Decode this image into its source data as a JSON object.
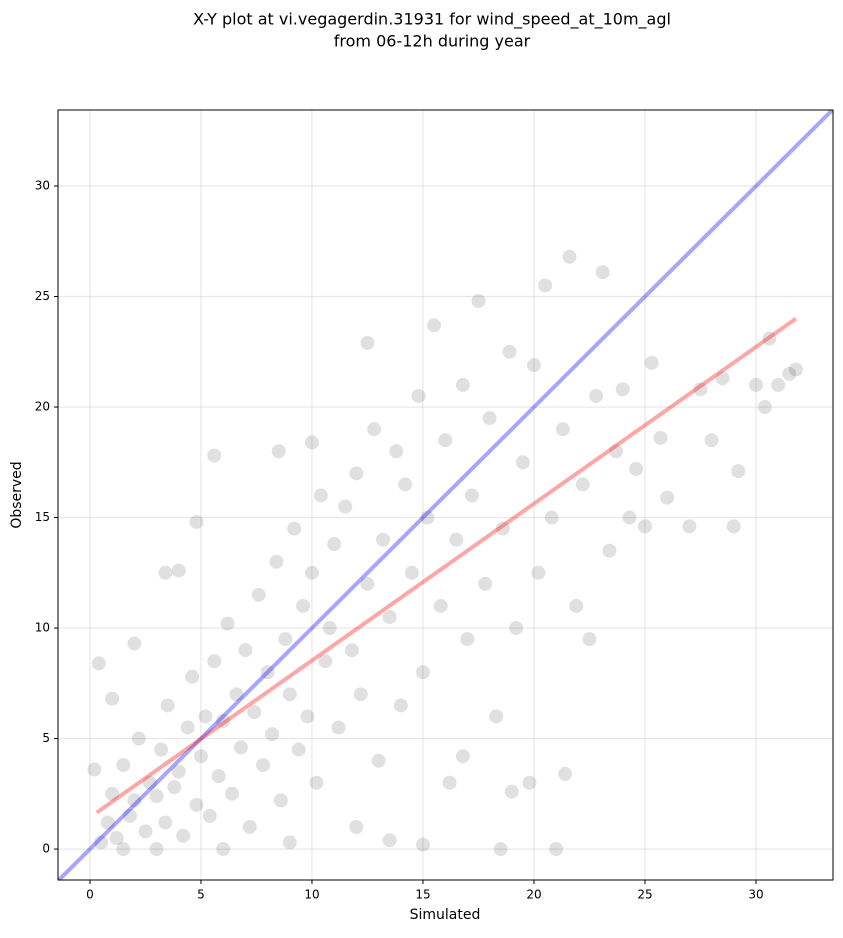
{
  "chart_data": {
    "type": "scatter",
    "title": [
      "X-Y plot at vi.vegagerdin.31931 for wind_speed_at_10m_agl",
      "from 06-12h during year"
    ],
    "x_label": "Simulated",
    "y_label": "Observed",
    "xlim": [
      -1.44,
      33.47
    ],
    "ylim": [
      -1.4,
      33.44
    ],
    "xticks": [
      0,
      5,
      10,
      15,
      20,
      25,
      30
    ],
    "yticks": [
      0,
      5,
      10,
      15,
      20,
      25,
      30
    ],
    "grid": true,
    "color": "#000000",
    "x": [
      0.5,
      0.8,
      1.0,
      1.2,
      1.5,
      1.8,
      2.0,
      2.2,
      2.5,
      2.7,
      3.0,
      3.2,
      3.4,
      3.5,
      3.8,
      4.0,
      4.2,
      4.4,
      4.6,
      4.8,
      5.0,
      5.2,
      5.4,
      5.6,
      5.8,
      6.0,
      6.2,
      6.4,
      6.6,
      6.8,
      7.0,
      7.2,
      7.4,
      7.6,
      7.8,
      8.0,
      8.2,
      8.4,
      8.6,
      8.8,
      9.0,
      9.2,
      9.4,
      9.6,
      9.8,
      10.0,
      10.2,
      10.4,
      10.6,
      10.8,
      11.0,
      11.2,
      11.5,
      11.8,
      12.0,
      12.2,
      12.5,
      12.8,
      13.0,
      13.2,
      13.5,
      13.8,
      14.0,
      14.2,
      14.5,
      14.8,
      15.0,
      15.2,
      15.5,
      15.8,
      16.0,
      16.2,
      16.5,
      16.8,
      17.0,
      17.2,
      17.5,
      17.8,
      18.0,
      18.3,
      18.6,
      18.9,
      19.2,
      19.5,
      19.8,
      20.0,
      20.2,
      20.5,
      20.8,
      21.0,
      21.3,
      21.6,
      21.9,
      22.2,
      22.5,
      22.8,
      23.1,
      23.4,
      23.7,
      24.0,
      24.3,
      24.6,
      25.0,
      25.3,
      25.7,
      26.0,
      27.0,
      27.5,
      28.0,
      28.5,
      29.0,
      29.2,
      30.0,
      30.4,
      30.6,
      31.0,
      31.5,
      31.8,
      0.2,
      0.4,
      1.0,
      2.0,
      3.4,
      4.0,
      4.8,
      5.6,
      8.5,
      10.0,
      12.5,
      18.5,
      21.4,
      19.0,
      16.8,
      12.0,
      9.0,
      6.0,
      3.0,
      1.5,
      13.5,
      15.0
    ],
    "y": [
      0.3,
      1.2,
      2.5,
      0.5,
      3.8,
      1.5,
      2.2,
      5.0,
      0.8,
      3.0,
      2.4,
      4.5,
      1.2,
      6.5,
      2.8,
      3.5,
      0.6,
      5.5,
      7.8,
      2.0,
      4.2,
      6.0,
      1.5,
      8.5,
      3.3,
      5.8,
      10.2,
      2.5,
      7.0,
      4.6,
      9.0,
      1.0,
      6.2,
      11.5,
      3.8,
      8.0,
      5.2,
      13.0,
      2.2,
      9.5,
      7.0,
      14.5,
      4.5,
      11.0,
      6.0,
      12.5,
      3.0,
      16.0,
      8.5,
      10.0,
      13.8,
      5.5,
      15.5,
      9.0,
      17.0,
      7.0,
      12.0,
      19.0,
      4.0,
      14.0,
      10.5,
      18.0,
      6.5,
      16.5,
      12.5,
      20.5,
      8.0,
      15.0,
      23.7,
      11.0,
      18.5,
      3.0,
      14.0,
      21.0,
      9.5,
      16.0,
      24.8,
      12.0,
      19.5,
      6.0,
      14.5,
      22.5,
      10.0,
      17.5,
      3.0,
      21.9,
      12.5,
      25.5,
      15.0,
      0.0,
      19.0,
      26.8,
      11.0,
      16.5,
      9.5,
      20.5,
      26.1,
      13.5,
      18.0,
      20.8,
      15.0,
      17.2,
      14.6,
      22.0,
      18.6,
      15.9,
      14.6,
      20.8,
      18.5,
      21.3,
      14.6,
      17.1,
      21.0,
      20.0,
      23.1,
      21.0,
      21.5,
      21.7,
      3.6,
      8.4,
      6.8,
      9.3,
      12.5,
      12.6,
      14.8,
      17.8,
      18.0,
      18.4,
      22.9,
      0.0,
      3.4,
      2.6,
      4.2,
      1.0,
      0.3,
      0.0,
      0.0,
      0.0,
      0.4,
      0.2
    ],
    "lines": [
      {
        "color": "#0000ff",
        "x": [
          -1.44,
          33.47
        ],
        "y": [
          -1.44,
          33.47
        ]
      },
      {
        "color": "#ff0000",
        "x": [
          0.3,
          31.8
        ],
        "y": [
          1.65,
          24.0
        ]
      }
    ]
  }
}
